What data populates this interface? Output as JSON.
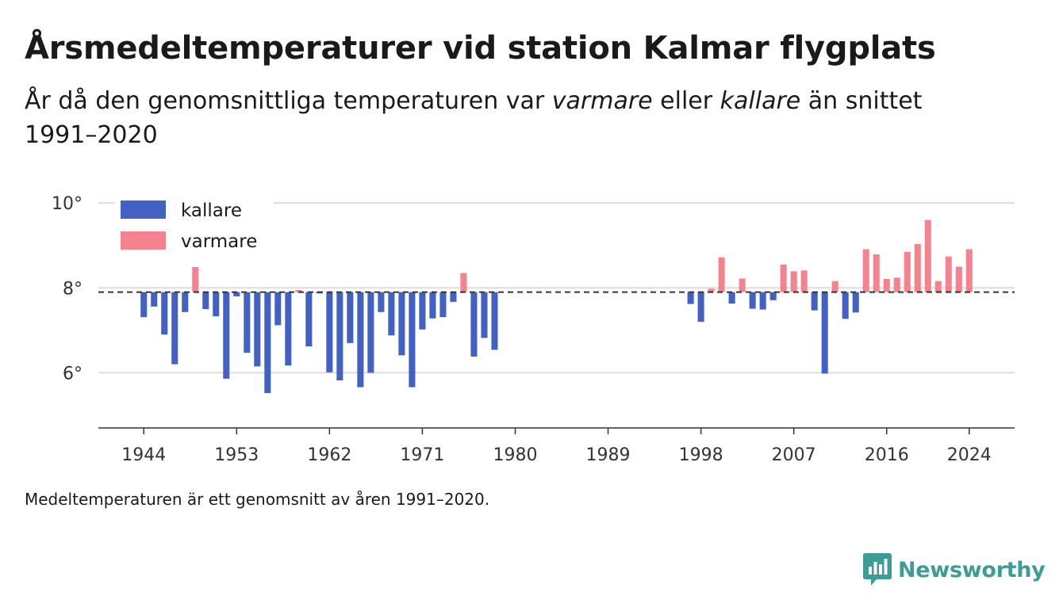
{
  "header": {
    "title": "Årsmedeltemperaturer vid station Kalmar flygplats",
    "subtitle_pre": "År då den genomsnittliga temperaturen var ",
    "subtitle_warm": "varmare",
    "subtitle_mid": " eller ",
    "subtitle_cold": "kallare",
    "subtitle_post": " än snittet 1991–2020"
  },
  "footnote": "Medeltemperaturen är ett genomsnitt av åren 1991–2020.",
  "brand": {
    "name": "Newsworthy",
    "icon": "newsworthy-logo-icon",
    "color": "#3e9c94"
  },
  "colors": {
    "colder": "#4361c2",
    "warmer": "#f5838f",
    "baseline": "#333333",
    "grid": "#dddddd"
  },
  "chart_data": {
    "type": "bar",
    "baseline": 7.9,
    "ylim": [
      4.7,
      10.6
    ],
    "yticks": [
      6,
      8,
      10
    ],
    "ytick_labels": [
      "6°",
      "8°",
      "10°"
    ],
    "xlim": [
      1939.6,
      2028.4
    ],
    "xticks": [
      1944,
      1953,
      1962,
      1971,
      1980,
      1989,
      1998,
      2007,
      2016,
      2024
    ],
    "xtick_labels": [
      "1944",
      "1953",
      "1962",
      "1971",
      "1980",
      "1989",
      "1998",
      "2007",
      "2016",
      "2024"
    ],
    "legend": {
      "position": "top-left",
      "colder_label": "kallare",
      "warmer_label": "varmare"
    },
    "grid": true,
    "x": [
      1944,
      1945,
      1946,
      1947,
      1948,
      1949,
      1950,
      1951,
      1952,
      1953,
      1954,
      1955,
      1956,
      1957,
      1958,
      1959,
      1960,
      1961,
      1962,
      1963,
      1964,
      1965,
      1966,
      1967,
      1968,
      1969,
      1970,
      1971,
      1972,
      1973,
      1974,
      1975,
      1976,
      1977,
      1978,
      1997,
      1998,
      1999,
      2000,
      2001,
      2002,
      2003,
      2004,
      2005,
      2006,
      2007,
      2008,
      2009,
      2010,
      2011,
      2012,
      2013,
      2014,
      2015,
      2016,
      2017,
      2018,
      2019,
      2020,
      2021,
      2022,
      2023,
      2024
    ],
    "values": [
      7.31,
      7.56,
      6.9,
      6.2,
      7.43,
      8.49,
      7.5,
      7.33,
      5.86,
      7.8,
      6.47,
      6.15,
      5.52,
      7.12,
      6.17,
      7.95,
      6.62,
      7.87,
      6.01,
      5.82,
      6.7,
      5.66,
      6.0,
      7.43,
      6.88,
      6.41,
      5.66,
      7.02,
      7.28,
      7.31,
      7.67,
      8.35,
      6.38,
      6.82,
      6.54,
      7.62,
      7.2,
      7.98,
      8.72,
      7.63,
      8.22,
      7.51,
      7.49,
      7.71,
      8.55,
      8.39,
      8.41,
      7.47,
      5.98,
      8.16,
      7.27,
      7.42,
      8.91,
      8.79,
      8.21,
      8.24,
      8.85,
      9.03,
      9.6,
      8.16,
      8.74,
      8.5,
      8.91
    ]
  }
}
